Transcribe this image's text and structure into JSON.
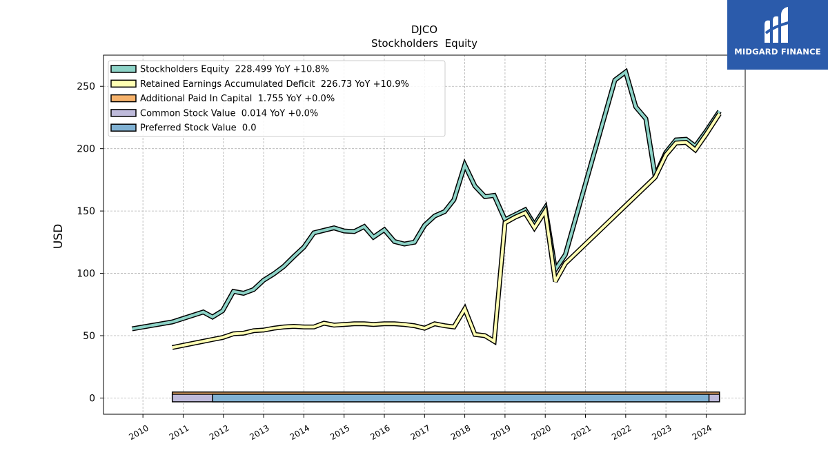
{
  "chart_data": {
    "type": "line",
    "title": "DJCO",
    "subtitle": "Stockholders  Equity",
    "ylabel": "USD",
    "xlabel": "",
    "ylim": [
      -13,
      275
    ],
    "xlim": [
      2009.02,
      2024.97
    ],
    "yticks": [
      0,
      50,
      100,
      150,
      200,
      250
    ],
    "xticks": [
      2010,
      2011,
      2012,
      2013,
      2014,
      2015,
      2016,
      2017,
      2018,
      2019,
      2020,
      2021,
      2022,
      2023,
      2024
    ],
    "xtick_labels": [
      "2010",
      "2011",
      "2012",
      "2013",
      "2014",
      "2015",
      "2016",
      "2017",
      "2018",
      "2019",
      "2020",
      "2021",
      "2022",
      "2023",
      "2024"
    ],
    "ytick_labels": [
      "0",
      "50",
      "100",
      "150",
      "200",
      "250"
    ],
    "grid": true,
    "legend_position": "top-left",
    "series": [
      {
        "name": "Stockholders Equity",
        "legend_label": "Stockholders Equity  228.499 YoY +10.8%",
        "color": "#8dd3c7",
        "kind": "line",
        "points": [
          [
            2009.73,
            55.5
          ],
          [
            2010.73,
            61.0
          ],
          [
            2011.5,
            69.0
          ],
          [
            2011.73,
            65.0
          ],
          [
            2011.98,
            70.0
          ],
          [
            2012.25,
            85.5
          ],
          [
            2012.5,
            84.0
          ],
          [
            2012.75,
            87.0
          ],
          [
            2013.0,
            94.5
          ],
          [
            2013.25,
            99.5
          ],
          [
            2013.5,
            105.5
          ],
          [
            2013.75,
            113.5
          ],
          [
            2014.0,
            121.0
          ],
          [
            2014.25,
            132.5
          ],
          [
            2014.5,
            134.5
          ],
          [
            2014.75,
            136.5
          ],
          [
            2015.0,
            134.0
          ],
          [
            2015.25,
            133.5
          ],
          [
            2015.5,
            137.5
          ],
          [
            2015.73,
            129.0
          ],
          [
            2016.0,
            135.0
          ],
          [
            2016.25,
            125.5
          ],
          [
            2016.5,
            123.5
          ],
          [
            2016.75,
            125.0
          ],
          [
            2017.0,
            138.5
          ],
          [
            2017.25,
            146.0
          ],
          [
            2017.5,
            149.5
          ],
          [
            2017.73,
            159.0
          ],
          [
            2018.0,
            187.0
          ],
          [
            2018.25,
            170.0
          ],
          [
            2018.5,
            161.5
          ],
          [
            2018.73,
            162.5
          ],
          [
            2019.0,
            143.0
          ],
          [
            2019.25,
            147.0
          ],
          [
            2019.5,
            151.0
          ],
          [
            2019.73,
            139.0
          ],
          [
            2020.0,
            152.5
          ],
          [
            2020.25,
            103.0
          ],
          [
            2020.5,
            115.0
          ],
          [
            2021.73,
            255.0
          ],
          [
            2022.0,
            261.5
          ],
          [
            2022.25,
            233.5
          ],
          [
            2022.5,
            224.0
          ],
          [
            2022.73,
            178.0
          ],
          [
            2023.0,
            197.0
          ],
          [
            2023.25,
            207.0
          ],
          [
            2023.5,
            207.5
          ],
          [
            2023.73,
            202.0
          ],
          [
            2024.0,
            214.0
          ],
          [
            2024.33,
            230.0
          ]
        ]
      },
      {
        "name": "Retained Earnings Accumulated Deficit",
        "legend_label": "Retained Earnings Accumulated Deficit  226.73 YoY +10.9%",
        "color": "#ffffb3",
        "kind": "line",
        "points": [
          [
            2010.73,
            40.5
          ],
          [
            2011.5,
            45.5
          ],
          [
            2011.73,
            47.0
          ],
          [
            2011.98,
            48.5
          ],
          [
            2012.25,
            51.5
          ],
          [
            2012.5,
            52.0
          ],
          [
            2012.75,
            54.0
          ],
          [
            2013.0,
            54.5
          ],
          [
            2013.25,
            56.0
          ],
          [
            2013.5,
            57.0
          ],
          [
            2013.75,
            57.5
          ],
          [
            2014.0,
            57.0
          ],
          [
            2014.25,
            57.0
          ],
          [
            2014.5,
            60.0
          ],
          [
            2014.75,
            58.5
          ],
          [
            2015.0,
            59.0
          ],
          [
            2015.25,
            59.5
          ],
          [
            2015.5,
            59.5
          ],
          [
            2015.73,
            59.0
          ],
          [
            2016.0,
            59.5
          ],
          [
            2016.25,
            59.5
          ],
          [
            2016.5,
            59.0
          ],
          [
            2016.75,
            58.0
          ],
          [
            2017.0,
            56.0
          ],
          [
            2017.25,
            59.5
          ],
          [
            2017.5,
            58.0
          ],
          [
            2017.73,
            57.0
          ],
          [
            2018.0,
            71.5
          ],
          [
            2018.25,
            51.0
          ],
          [
            2018.5,
            50.0
          ],
          [
            2018.73,
            45.5
          ],
          [
            2019.0,
            140.5
          ],
          [
            2019.25,
            145.0
          ],
          [
            2019.5,
            148.5
          ],
          [
            2019.73,
            136.5
          ],
          [
            2020.0,
            150.0
          ],
          [
            2020.25,
            93.5
          ],
          [
            2020.5,
            108.0
          ],
          [
            2022.73,
            177.0
          ],
          [
            2023.0,
            195.0
          ],
          [
            2023.25,
            204.5
          ],
          [
            2023.5,
            205.0
          ],
          [
            2023.73,
            199.0
          ],
          [
            2024.0,
            211.5
          ],
          [
            2024.33,
            228.0
          ]
        ]
      },
      {
        "name": "Additional Paid In Capital",
        "legend_label": "Additional Paid In Capital  1.755 YoY +0.0%",
        "color": "#f6b26b",
        "kind": "band",
        "x_range": [
          2010.73,
          2024.33
        ],
        "value": 1.755
      },
      {
        "name": "Common Stock Value",
        "legend_label": "Common Stock Value  0.014 YoY +0.0%",
        "color": "#bebada",
        "kind": "band",
        "x_range": [
          2010.73,
          2024.33
        ],
        "value": 0.014
      },
      {
        "name": "Preferred Stock Value",
        "legend_label": "Preferred Stock Value  0.0",
        "color": "#80b1d3",
        "kind": "band",
        "x_range": [
          2011.73,
          2024.07
        ],
        "value": 0.0
      }
    ]
  },
  "logo": {
    "text": "MIDGARD FINANCE",
    "bg_color": "#2b5bab"
  }
}
